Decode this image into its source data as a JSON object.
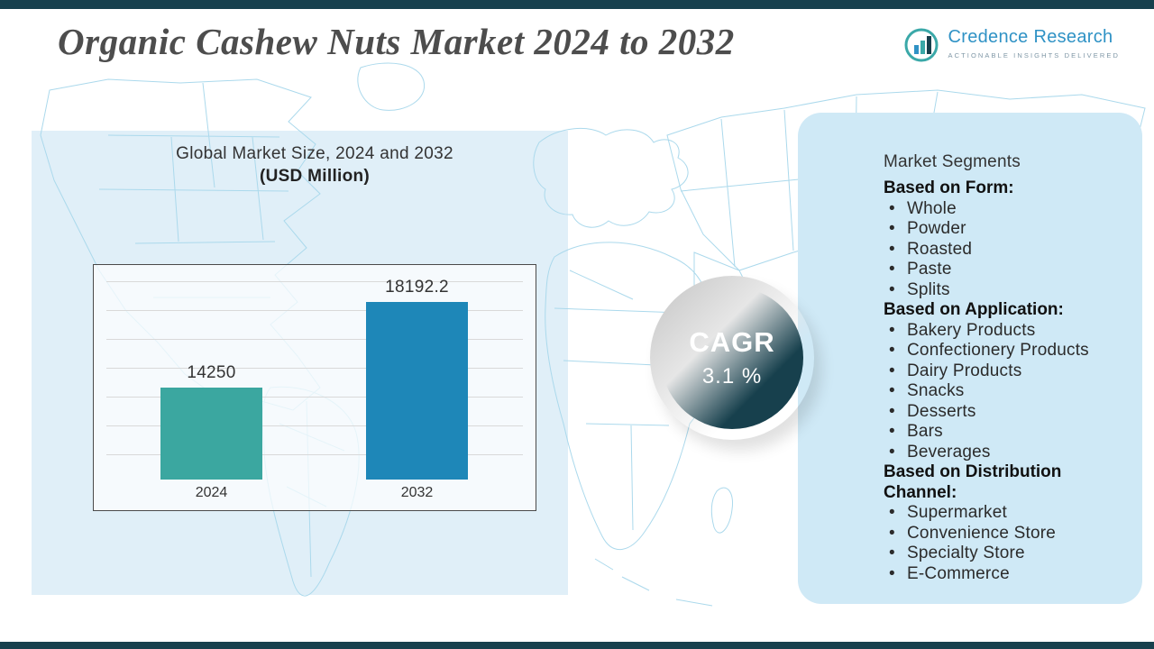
{
  "page": {
    "title": "Organic Cashew Nuts Market 2024 to 2032"
  },
  "logo": {
    "name": "Credence Research",
    "tagline": "ACTIONABLE INSIGHTS DELIVERED"
  },
  "chart": {
    "title": "Global Market Size, 2024 and 2032",
    "subtitle": "(USD Million)"
  },
  "chart_data": {
    "type": "bar",
    "title": "Global Market Size, 2024 and 2032",
    "subtitle": "(USD Million)",
    "categories": [
      "2024",
      "2032"
    ],
    "values": [
      14250,
      18192.2
    ],
    "labels": [
      "14250",
      "18192.2"
    ],
    "ylim": [
      10000,
      20000
    ],
    "grid": true,
    "legend": "none",
    "colors": [
      "#3ba7a0",
      "#1e87b8"
    ]
  },
  "cagr": {
    "label": "CAGR",
    "value": "3.1 %"
  },
  "segments": {
    "title": "Market Segments",
    "groups": [
      {
        "heading": "Based on Form:",
        "items": [
          "Whole",
          "Powder",
          "Roasted",
          "Paste",
          "Splits"
        ]
      },
      {
        "heading": "Based on Application:",
        "items": [
          "Bakery Products",
          "Confectionery Products",
          "Dairy Products",
          "Snacks",
          "Desserts",
          "Bars",
          "Beverages"
        ]
      },
      {
        "heading": "Based on Distribution Channel:",
        "items": [
          "Supermarket",
          "Convenience Store",
          "Specialty Store",
          "E-Commerce"
        ]
      }
    ]
  },
  "theme": {
    "accent_dark": "#17404d",
    "bar_2024": "#3ba7a0",
    "bar_2032": "#1e87b8",
    "panel_blue": "#cfe9f6",
    "map_line": "#abd9ec",
    "logo_blue": "#2f92c5"
  }
}
